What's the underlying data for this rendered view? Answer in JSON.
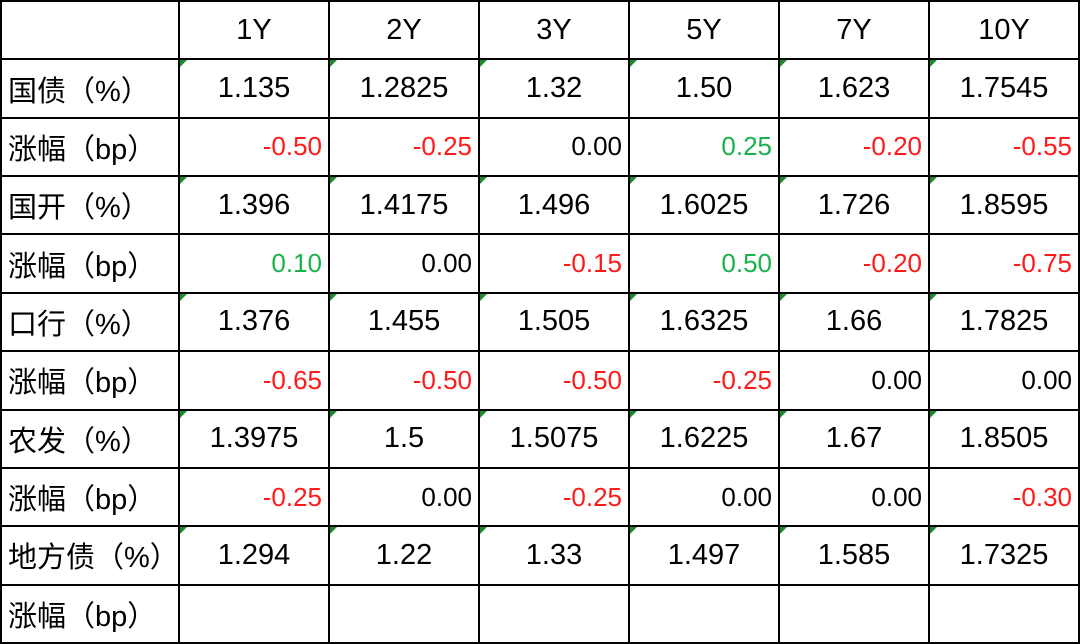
{
  "table": {
    "columns": [
      "1Y",
      "2Y",
      "3Y",
      "5Y",
      "7Y",
      "10Y"
    ],
    "rows": [
      {
        "label": "国债（%）",
        "kind": "yield",
        "cells": [
          "1.135",
          "1.2825",
          "1.32",
          "1.50",
          "1.623",
          "1.7545"
        ]
      },
      {
        "label": "涨幅（bp）",
        "kind": "change",
        "cells": [
          "-0.50",
          "-0.25",
          "0.00",
          "0.25",
          "-0.20",
          "-0.55"
        ]
      },
      {
        "label": "国开（%）",
        "kind": "yield",
        "cells": [
          "1.396",
          "1.4175",
          "1.496",
          "1.6025",
          "1.726",
          "1.8595"
        ]
      },
      {
        "label": "涨幅（bp）",
        "kind": "change",
        "cells": [
          "0.10",
          "0.00",
          "-0.15",
          "0.50",
          "-0.20",
          "-0.75"
        ]
      },
      {
        "label": "口行（%）",
        "kind": "yield",
        "cells": [
          "1.376",
          "1.455",
          "1.505",
          "1.6325",
          "1.66",
          "1.7825"
        ]
      },
      {
        "label": "涨幅（bp）",
        "kind": "change",
        "cells": [
          "-0.65",
          "-0.50",
          "-0.50",
          "-0.25",
          "0.00",
          "0.00"
        ]
      },
      {
        "label": "农发（%）",
        "kind": "yield",
        "cells": [
          "1.3975",
          "1.5",
          "1.5075",
          "1.6225",
          "1.67",
          "1.8505"
        ]
      },
      {
        "label": "涨幅（bp）",
        "kind": "change",
        "cells": [
          "-0.25",
          "0.00",
          "-0.25",
          "0.00",
          "0.00",
          "-0.30"
        ]
      },
      {
        "label": "地方债（%）",
        "kind": "yield",
        "cells": [
          "1.294",
          "1.22",
          "1.33",
          "1.497",
          "1.585",
          "1.7325"
        ]
      },
      {
        "label": "涨幅（bp）",
        "kind": "change",
        "cells": []
      }
    ]
  }
}
